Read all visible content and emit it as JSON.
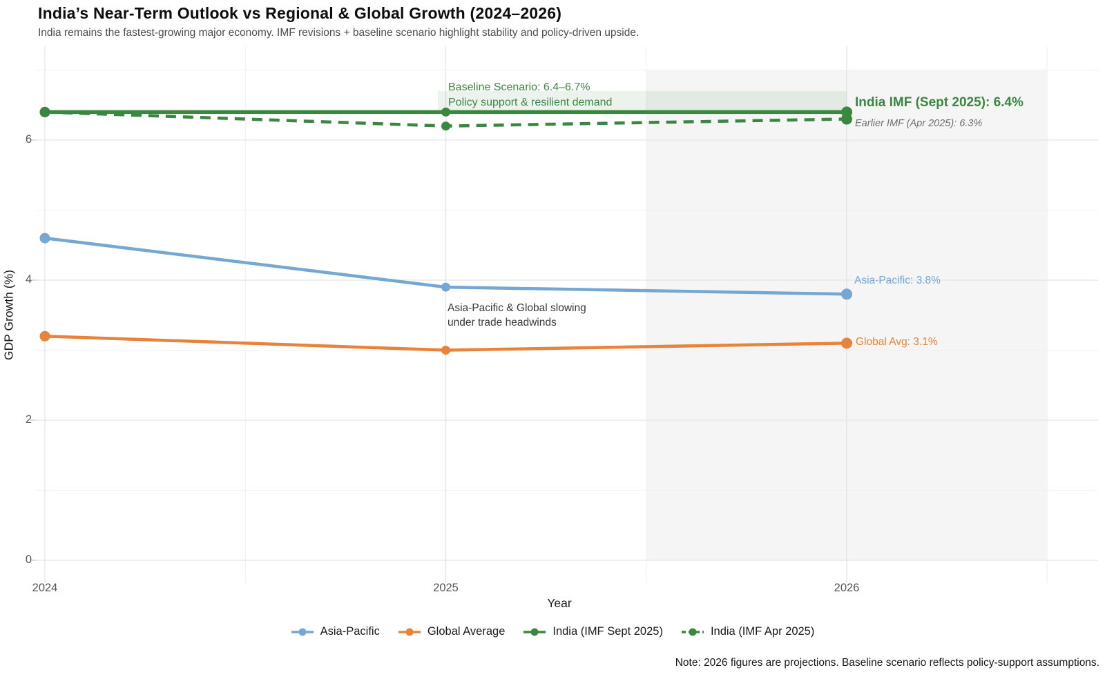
{
  "header": {
    "title": "India’s Near-Term Outlook vs Regional & Global Growth (2024–2026)",
    "subtitle": "India remains the fastest-growing major economy. IMF revisions + baseline scenario highlight stability and policy-driven upside."
  },
  "chart_data": {
    "type": "line",
    "xlabel": "Year",
    "ylabel": "GDP Growth (%)",
    "x": [
      2024,
      2025,
      2026
    ],
    "x_tick_labels": [
      "2024",
      "2025",
      "2026"
    ],
    "y_ticks": [
      0,
      2,
      4,
      6
    ],
    "y_minor_ticks": [
      1,
      3,
      5,
      7
    ],
    "x_minor_ticks": [
      2024.5,
      2025.5,
      2026.5
    ],
    "ylim": [
      -0.33,
      7.34
    ],
    "xlim": [
      2023.98,
      2026.63
    ],
    "grid": "on",
    "legend_position": "bottom",
    "series": [
      {
        "name": "Asia-Pacific",
        "color": "#74a7d3",
        "dash": "solid",
        "values": [
          4.6,
          3.9,
          3.8
        ]
      },
      {
        "name": "Global Average",
        "color": "#e8833b",
        "dash": "solid",
        "values": [
          3.2,
          3.0,
          3.1
        ]
      },
      {
        "name": "India (IMF Apr 2025)",
        "color": "#3a8741",
        "dash": "dashed",
        "values": [
          6.4,
          6.2,
          6.3
        ]
      },
      {
        "name": "India (IMF Sept 2025)",
        "color": "#3a8741",
        "dash": "solid",
        "values": [
          6.4,
          6.4,
          6.4
        ]
      }
    ],
    "legend_order": [
      "Asia-Pacific",
      "Global Average",
      "India (IMF Sept 2025)",
      "India (IMF Apr 2025)"
    ],
    "projection_region": {
      "x_start": 2025.5,
      "x_end": 2026.5,
      "y_min": 0,
      "y_max": 7,
      "fill": "#f5f5f5"
    },
    "baseline_band": {
      "x_start": 2024.98,
      "x_end": 2026,
      "y_min": 6.4,
      "y_max": 6.7,
      "fill": "rgba(58,135,65,0.10)"
    },
    "annotations": {
      "baseline_line1": "Baseline Scenario: 6.4–6.7%",
      "baseline_line2": "Policy support & resilient demand",
      "india_current": "India IMF (Sept 2025): 6.4%",
      "india_previous": "Earlier IMF (Apr 2025): 6.3%",
      "asia_pacific": "Asia-Pacific: 3.8%",
      "global_avg": "Global Avg: 3.1%",
      "slowdown_line1": "Asia-Pacific & Global slowing",
      "slowdown_line2": "under trade headwinds"
    },
    "note": "Note: 2026 figures are projections. Baseline scenario reflects policy-support assumptions."
  },
  "colors": {
    "india_green": "#3a8741",
    "asia_blue": "#74a7d3",
    "global_orange": "#e8833b",
    "grid_major": "#e5e5e5",
    "grid_minor": "#f0f0f0",
    "tick_text": "#555555",
    "annotation_gray": "#6e6e6e"
  }
}
